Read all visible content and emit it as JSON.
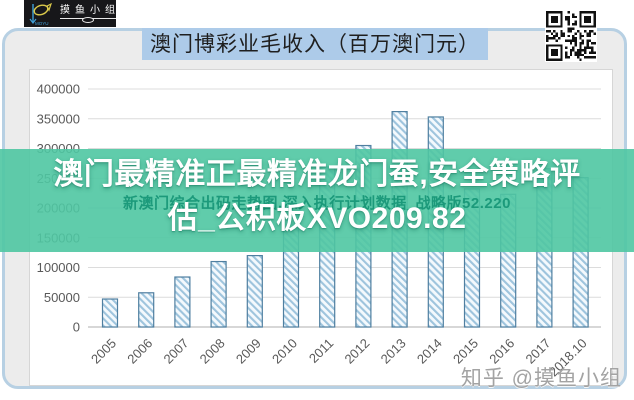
{
  "header": {
    "title": "澳门博彩业毛收入（百万澳门元）"
  },
  "branding": {
    "logo_text": "摸鱼小组",
    "logo_subtext": "MOYU",
    "watermark": "知乎 @摸鱼小组"
  },
  "overlay": {
    "band_color": "#4fc7a2",
    "headline_full": "澳门最精准正最精准龙门蚕,安全策略评估_公积板XVO209.82",
    "lines": [
      "澳门最精准正最精准龙门蚕,安全策略评",
      "估_公积板XVO209.82"
    ],
    "sub_text": "新澳门综合出码走势图,深入执行计划数据_战略版52.220"
  },
  "chart_data": {
    "type": "bar",
    "title": "澳门博彩业毛收入（百万澳门元）",
    "categories": [
      "2005",
      "2006",
      "2007",
      "2008",
      "2009",
      "2010",
      "2011",
      "2012",
      "2013",
      "2014",
      "2015",
      "2016",
      "2017",
      "2018.10"
    ],
    "values": [
      47000,
      57500,
      84000,
      110000,
      120000,
      190000,
      269000,
      305000,
      362000,
      353000,
      232000,
      223000,
      266000,
      251000
    ],
    "xlabel": "",
    "ylabel": "",
    "ylim": [
      0,
      400000
    ],
    "ytick_step": 50000,
    "ytick_labels": [
      "400000",
      "350000",
      "300000",
      "250000",
      "200000",
      "150000",
      "100000",
      "50000",
      "0"
    ],
    "grid": true,
    "legend": "none",
    "bar_style": {
      "pattern": "diagonal-hatch",
      "fill": "#f4f9fd",
      "stripe": "#9ec4dd",
      "border": "#4f7fa0"
    },
    "axis_color": "#bfbfbf",
    "gridline_color": "#dcdcdc",
    "label_color": "#595959"
  }
}
